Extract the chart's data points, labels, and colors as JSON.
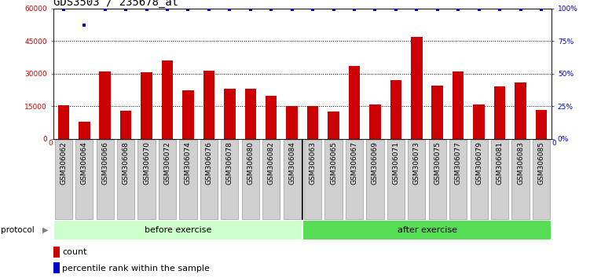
{
  "title": "GDS3503 / 235678_at",
  "categories": [
    "GSM306062",
    "GSM306064",
    "GSM306066",
    "GSM306068",
    "GSM306070",
    "GSM306072",
    "GSM306074",
    "GSM306076",
    "GSM306078",
    "GSM306080",
    "GSM306082",
    "GSM306084",
    "GSM306063",
    "GSM306065",
    "GSM306067",
    "GSM306069",
    "GSM306071",
    "GSM306073",
    "GSM306075",
    "GSM306077",
    "GSM306079",
    "GSM306081",
    "GSM306083",
    "GSM306085"
  ],
  "bar_values": [
    15500,
    8000,
    31000,
    13000,
    30500,
    36000,
    22500,
    31500,
    23000,
    23000,
    20000,
    15000,
    15000,
    12500,
    33500,
    16000,
    27000,
    47000,
    24500,
    31000,
    16000,
    24000,
    26000,
    13500
  ],
  "percentile_values": [
    99,
    87,
    99,
    99,
    99,
    99,
    99,
    99,
    99,
    99,
    99,
    99,
    99,
    99,
    99,
    99,
    99,
    99,
    99,
    99,
    99,
    99,
    99,
    99
  ],
  "n_before": 12,
  "n_after": 12,
  "bar_color": "#cc0000",
  "percentile_color": "#0000cc",
  "ylim_left": [
    0,
    60000
  ],
  "ylim_right": [
    0,
    100
  ],
  "yticks_left": [
    0,
    15000,
    30000,
    45000,
    60000
  ],
  "yticks_right": [
    0,
    25,
    50,
    75,
    100
  ],
  "ylabel_left_labels": [
    "0",
    "15000",
    "30000",
    "45000",
    "60000"
  ],
  "ylabel_right_labels": [
    "0%",
    "25%",
    "50%",
    "75%",
    "100%"
  ],
  "before_color": "#ccffcc",
  "after_color": "#55dd55",
  "protocol_label": "protocol",
  "before_label": "before exercise",
  "after_label": "after exercise",
  "legend_count_label": "count",
  "legend_percentile_label": "percentile rank within the sample",
  "title_fontsize": 10,
  "tick_fontsize": 6.5,
  "bar_width": 0.55,
  "grid_levels": [
    15000,
    30000,
    45000,
    60000
  ],
  "xtick_box_color": "#d0d0d0",
  "xtick_box_edge": "#999999",
  "separator_color": "#000000"
}
